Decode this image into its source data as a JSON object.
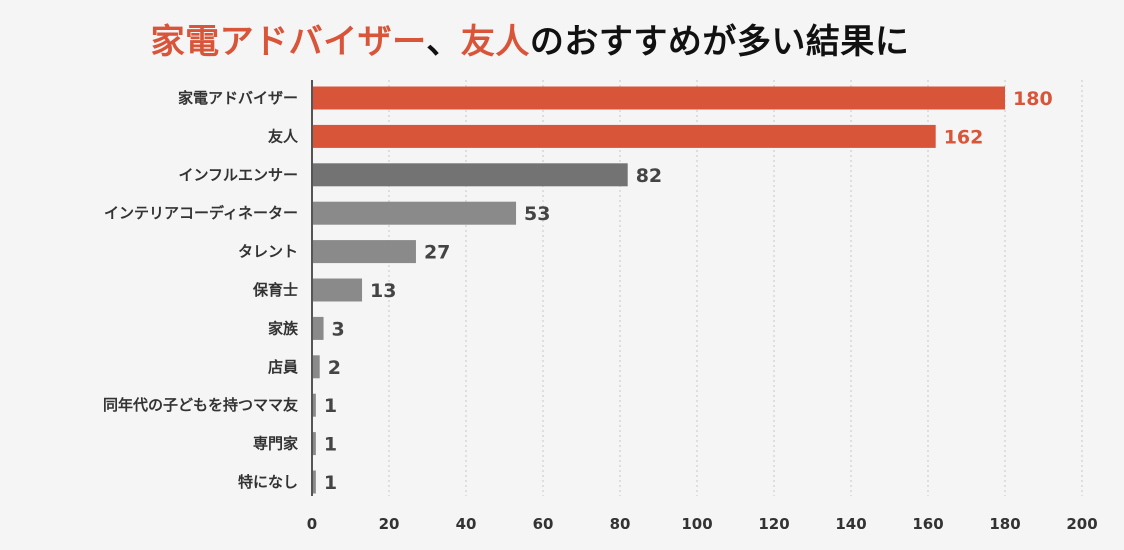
{
  "chart_data": {
    "type": "bar",
    "orientation": "horizontal",
    "title_parts": [
      {
        "text": "家電アドバイザー",
        "highlight": true
      },
      {
        "text": "、",
        "highlight": false
      },
      {
        "text": "友人",
        "highlight": true
      },
      {
        "text": "のおすすめが多い結果に",
        "highlight": false
      }
    ],
    "categories": [
      "家電アドバイザー",
      "友人",
      "インフルエンサー",
      "インテリアコーディネーター",
      "タレント",
      "保育士",
      "家族",
      "店員",
      "同年代の子どもを持つママ友",
      "専門家",
      "特になし"
    ],
    "values": [
      180,
      162,
      82,
      53,
      27,
      13,
      3,
      2,
      1,
      1,
      1
    ],
    "highlighted": [
      true,
      true,
      false,
      false,
      false,
      false,
      false,
      false,
      false,
      false,
      false
    ],
    "xlim": [
      0,
      200
    ],
    "xticks": [
      0,
      20,
      40,
      60,
      80,
      100,
      120,
      140,
      160,
      180,
      200
    ],
    "grid": "vertical-dotted",
    "colors": {
      "highlight": "#d9553a",
      "bar_dark": "#737373",
      "bar": "#8a8a8a",
      "axis": "#555555",
      "grid": "#c8c8c8",
      "title": "#111111",
      "label": "#333333",
      "value": "#444444"
    }
  }
}
